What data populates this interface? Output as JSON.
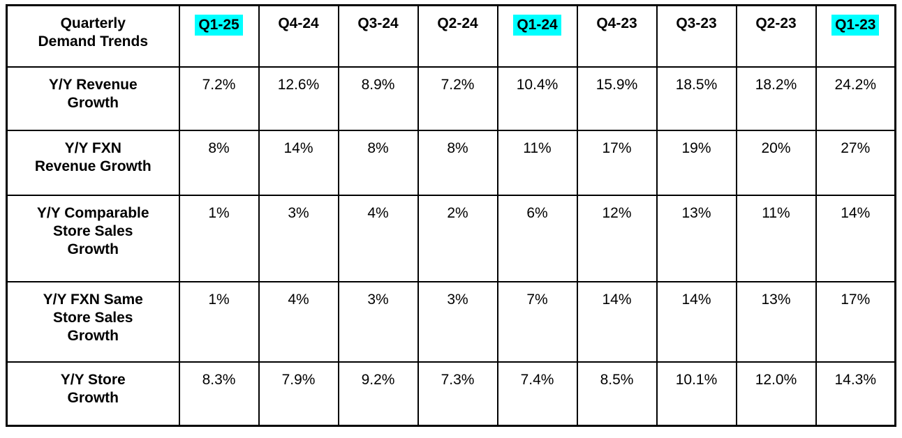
{
  "colors": {
    "highlight": "#00FFFF",
    "border": "#000000",
    "text": "#000000",
    "background": "#FFFFFF"
  },
  "chart_data": {
    "type": "table",
    "title": "Quarterly\nDemand Trends",
    "columns": [
      "Q1-25",
      "Q4-24",
      "Q3-24",
      "Q2-24",
      "Q1-24",
      "Q4-23",
      "Q3-23",
      "Q2-23",
      "Q1-23"
    ],
    "highlighted_columns": [
      "Q1-25",
      "Q1-24",
      "Q1-23"
    ],
    "rows": [
      {
        "label": "Y/Y Revenue\nGrowth",
        "values": [
          "7.2%",
          "12.6%",
          "8.9%",
          "7.2%",
          "10.4%",
          "15.9%",
          "18.5%",
          "18.2%",
          "24.2%"
        ]
      },
      {
        "label": "Y/Y FXN\nRevenue Growth",
        "values": [
          "8%",
          "14%",
          "8%",
          "8%",
          "11%",
          "17%",
          "19%",
          "20%",
          "27%"
        ]
      },
      {
        "label": "Y/Y Comparable\nStore Sales\nGrowth",
        "values": [
          "1%",
          "3%",
          "4%",
          "2%",
          "6%",
          "12%",
          "13%",
          "11%",
          "14%"
        ]
      },
      {
        "label": "Y/Y FXN Same\nStore Sales\nGrowth",
        "values": [
          "1%",
          "4%",
          "3%",
          "3%",
          "7%",
          "14%",
          "14%",
          "13%",
          "17%"
        ]
      },
      {
        "label": "Y/Y Store\nGrowth",
        "values": [
          "8.3%",
          "7.9%",
          "9.2%",
          "7.3%",
          "7.4%",
          "8.5%",
          "10.1%",
          "12.0%",
          "14.3%"
        ]
      }
    ]
  }
}
